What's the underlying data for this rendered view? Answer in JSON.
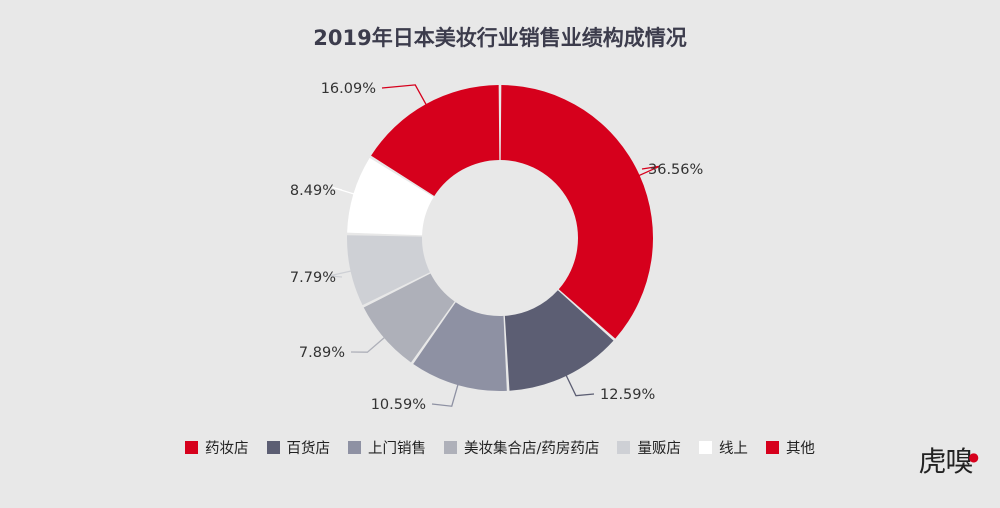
{
  "chart_data": {
    "type": "pie",
    "title": "2019年日本美妆行业销售业绩构成情况",
    "categories": [
      "药妆店",
      "百货店",
      "上门销售",
      "美妆集合店/药房药店",
      "量贩店",
      "线上",
      "其他"
    ],
    "values": [
      36.56,
      12.59,
      10.59,
      7.89,
      7.79,
      8.49,
      16.09
    ],
    "value_labels": [
      "36.56%",
      "12.59%",
      "10.59%",
      "7.89%",
      "7.79%",
      "8.49%",
      "16.09%"
    ],
    "colors": [
      "#d6001c",
      "#5c5e73",
      "#8e91a3",
      "#aeb0b9",
      "#ced0d5",
      "#ffffff",
      "#d6001c"
    ],
    "donut": true,
    "legend_position": "bottom"
  },
  "watermark": {
    "text": "虎嗅"
  }
}
